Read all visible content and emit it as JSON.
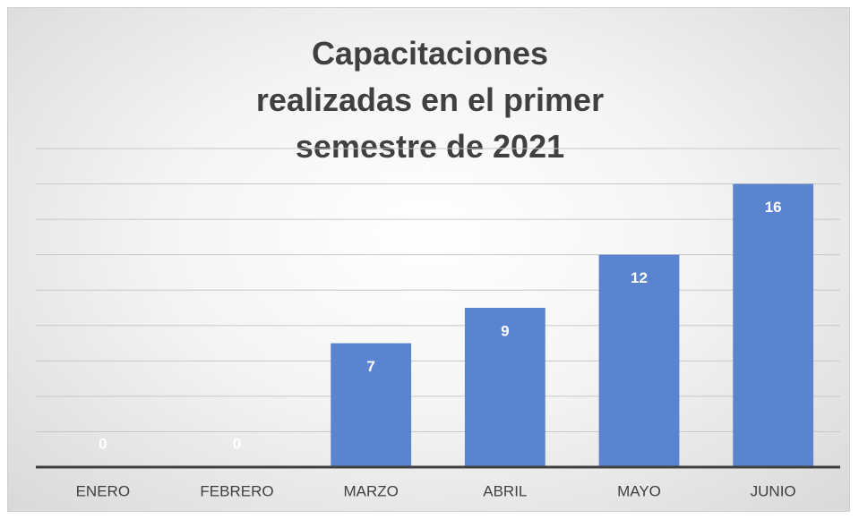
{
  "chart_data": {
    "type": "bar",
    "title": "Capacitaciones realizadas en el  primer semestre de 2021",
    "categories": [
      "ENERO",
      "FEBRERO",
      "MARZO",
      "ABRIL",
      "MAYO",
      "JUNIO"
    ],
    "values": [
      0,
      0,
      7,
      9,
      12,
      16
    ],
    "color": "#5b84d0",
    "ylim": [
      0,
      18
    ],
    "yticks": [
      0,
      2,
      4,
      6,
      8,
      10,
      12,
      14,
      16,
      18
    ],
    "grid": true
  }
}
